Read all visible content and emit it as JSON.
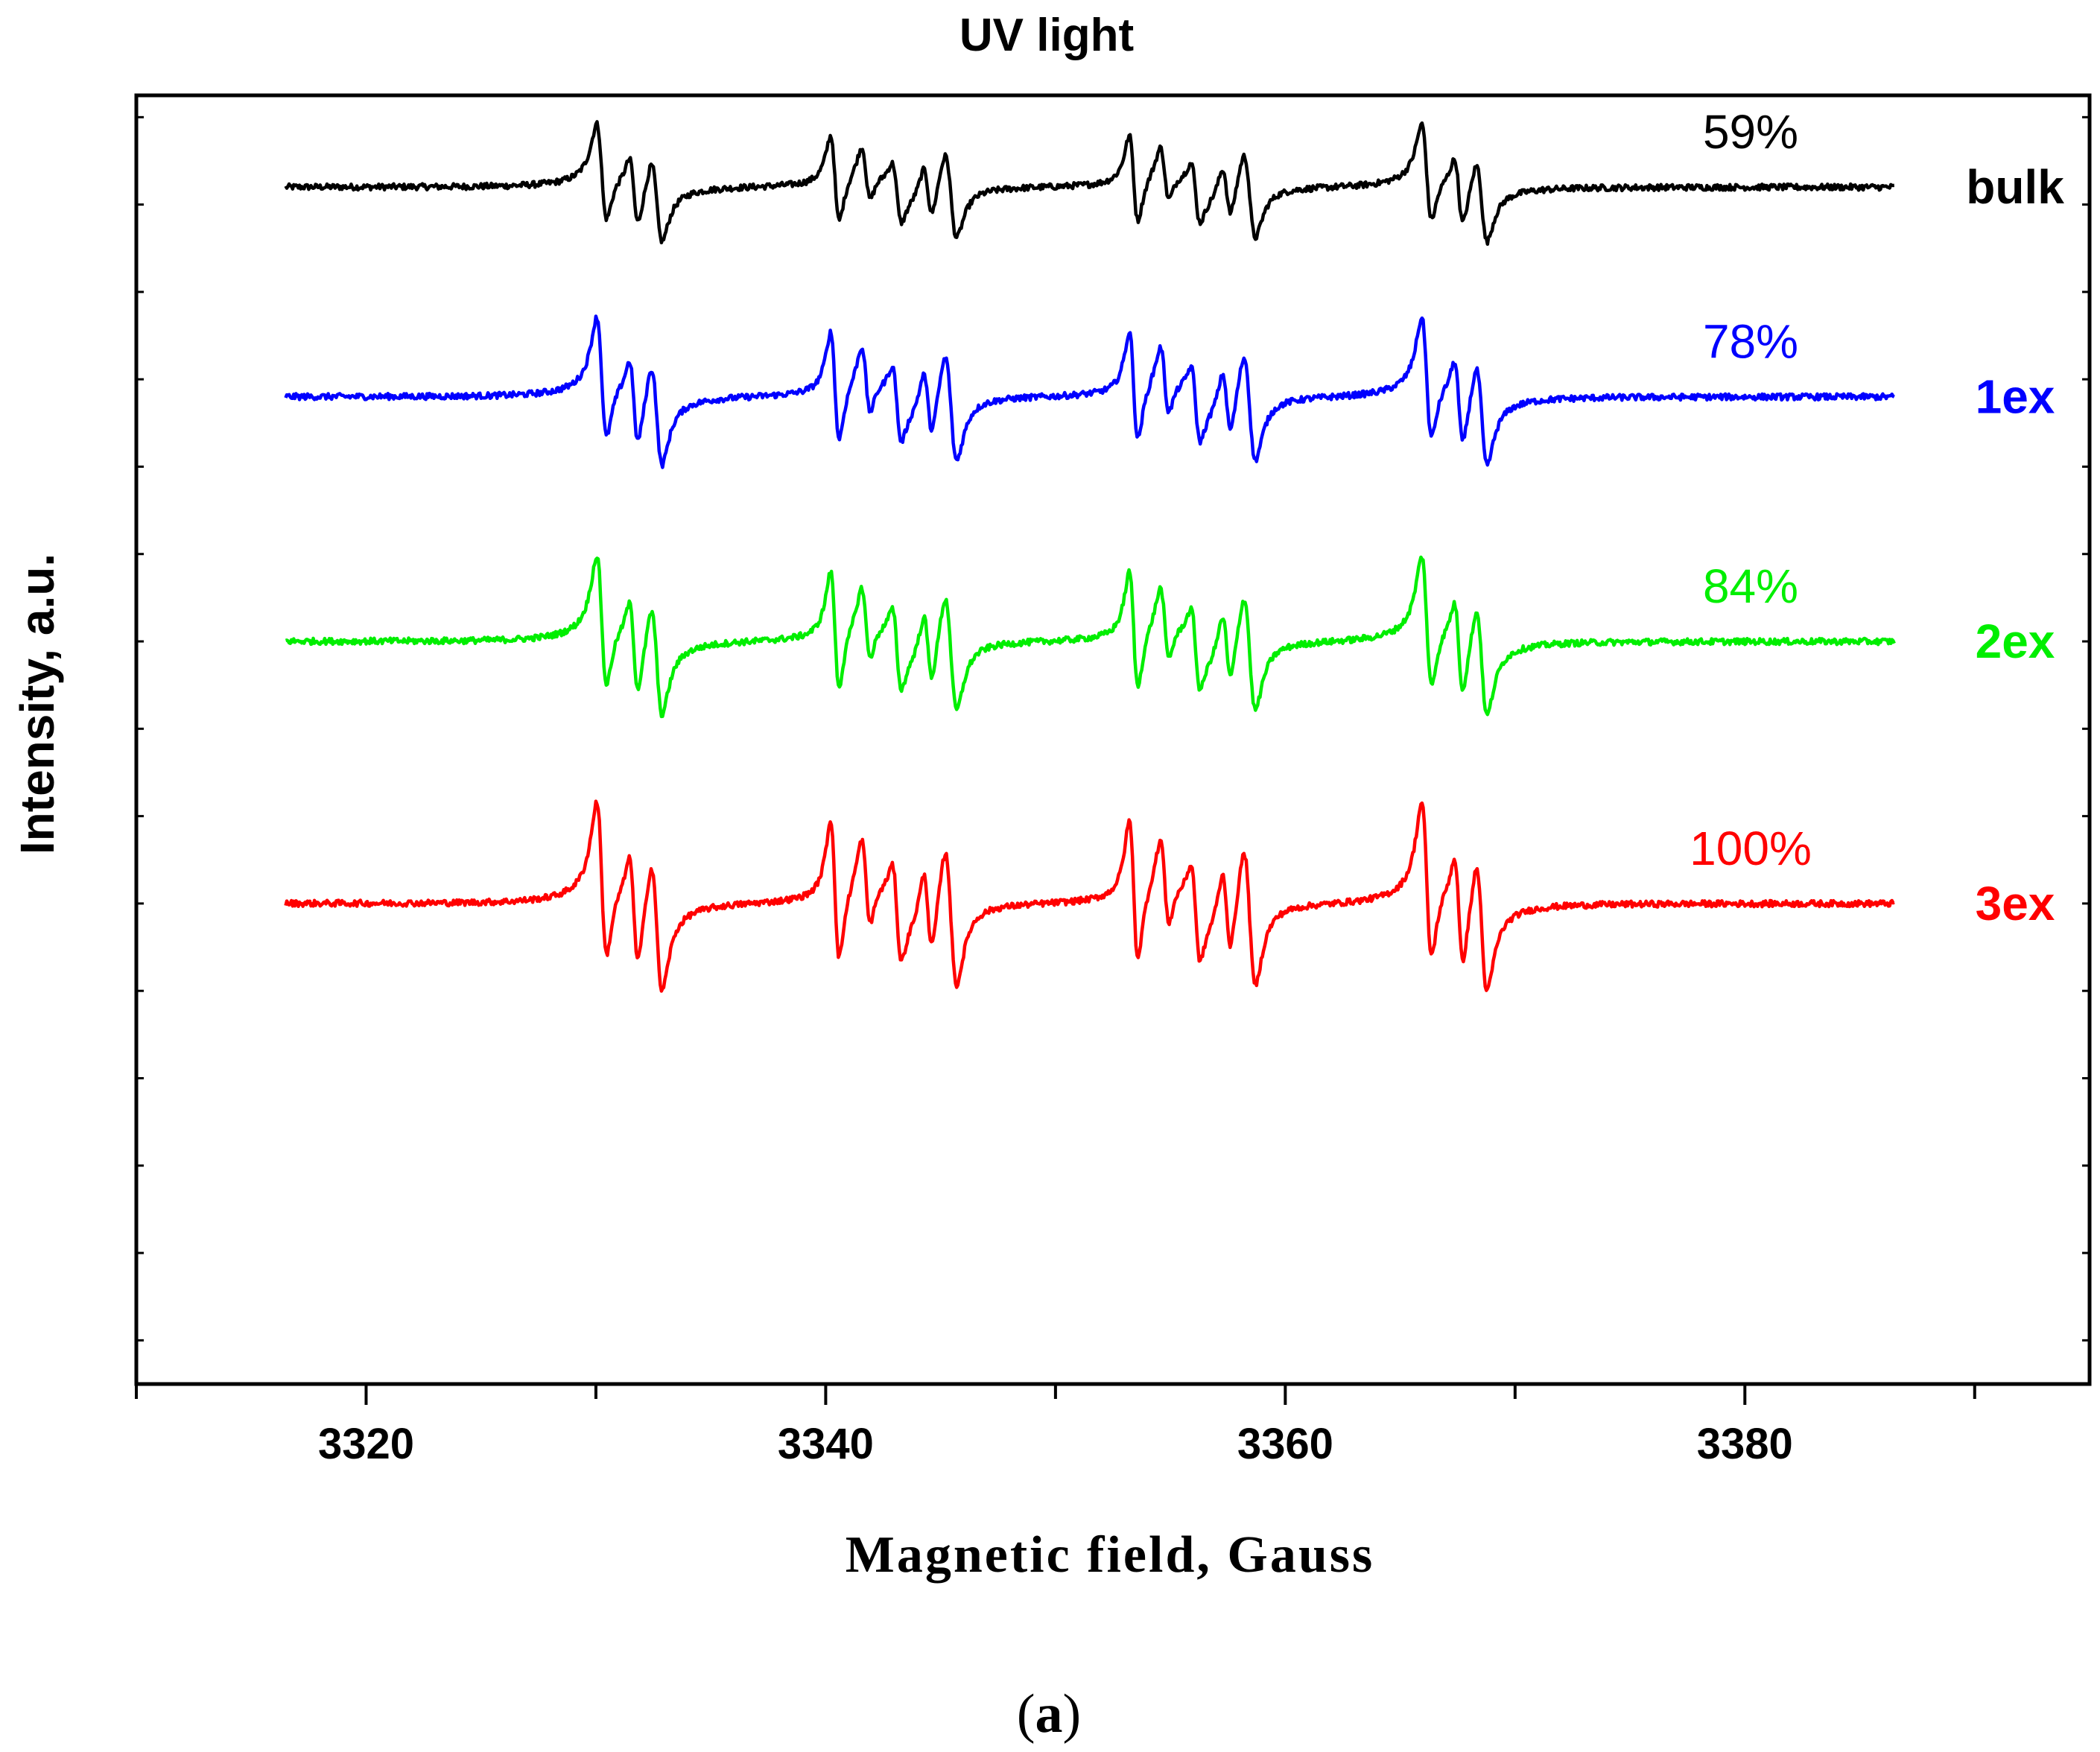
{
  "chart_data": {
    "type": "line",
    "title": "UV light",
    "xlabel": "Magnetic field, Gauss",
    "ylabel": "Intensity, a.u.",
    "panel_label": "a",
    "panel_label_open": "(",
    "panel_label_close": ")",
    "xlim": [
      3310,
      3395
    ],
    "x_range": [
      3316.5,
      3386.5
    ],
    "xticks": [
      3320,
      3340,
      3360,
      3380
    ],
    "xtick_labels": [
      "3320",
      "3340",
      "3360",
      "3380"
    ],
    "x_minor_step": 10,
    "ylim": [
      -17,
      12.5
    ],
    "y_tick_step": 2,
    "y_tick_labels_shown": false,
    "grid": false,
    "noise_amplitude": 0.07,
    "lines": [
      {
        "center": 3331.3,
        "half_split": 0.8,
        "weight": 1.0
      },
      {
        "center": 3342.8,
        "half_split": 1.0,
        "weight": 0.85
      },
      {
        "center": 3355.8,
        "half_split": 1.0,
        "weight": 0.85
      },
      {
        "center": 3367.2,
        "half_split": 0.9,
        "weight": 1.0
      }
    ],
    "satellite_spacing": 1.35,
    "series": [
      {
        "name": "bulk",
        "label": "bulk",
        "percent_label": "59%",
        "relative_intensity": 59,
        "color": "#000000",
        "baseline": 10.4,
        "amplitude": 3.1
      },
      {
        "name": "1ex",
        "label": "1ex",
        "percent_label": "78%",
        "relative_intensity": 78,
        "color": "#0000ff",
        "baseline": 5.6,
        "amplitude": 3.9
      },
      {
        "name": "2ex",
        "label": "2ex",
        "percent_label": "84%",
        "relative_intensity": 84,
        "color": "#00ee00",
        "baseline": 0.0,
        "amplitude": 4.2
      },
      {
        "name": "3ex",
        "label": "3ex",
        "percent_label": "100%",
        "relative_intensity": 100,
        "color": "#ff0000",
        "baseline": -6.0,
        "amplitude": 5.0
      }
    ]
  }
}
